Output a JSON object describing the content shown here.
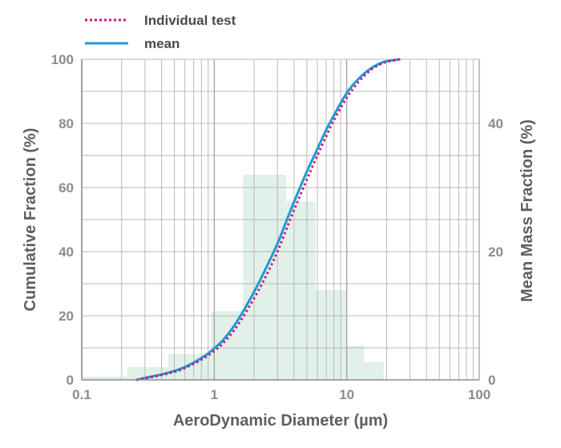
{
  "chart_data": {
    "type": "line",
    "xlabel": "AeroDynamic Diameter (µm)",
    "ylabel": "Cumulative Fraction (%)",
    "y2label": "Mean Mass Fraction (%)",
    "x_scale": "log",
    "xlim": [
      0.1,
      100
    ],
    "ylim": [
      0,
      100
    ],
    "y2lim": [
      0,
      50
    ],
    "x_ticks": [
      {
        "value": 0.1,
        "label": "0.1"
      },
      {
        "value": 1,
        "label": "1"
      },
      {
        "value": 10,
        "label": "10"
      },
      {
        "value": 100,
        "label": "100"
      }
    ],
    "y_ticks": [
      {
        "value": 0,
        "label": "0"
      },
      {
        "value": 20,
        "label": "20"
      },
      {
        "value": 40,
        "label": "40"
      },
      {
        "value": 60,
        "label": "60"
      },
      {
        "value": 80,
        "label": "80"
      },
      {
        "value": 100,
        "label": "100"
      }
    ],
    "y2_ticks": [
      {
        "value": 0,
        "label": "0"
      },
      {
        "value": 20,
        "label": "20"
      },
      {
        "value": 40,
        "label": "40"
      }
    ],
    "grid": true,
    "legend_position": "top-left",
    "series": [
      {
        "name": "Individual test",
        "style": "dotted",
        "color": "#d0107a",
        "x": [
          0.26,
          0.3,
          0.4,
          0.5,
          0.6,
          0.8,
          1.0,
          1.2,
          1.5,
          2.0,
          2.5,
          3.0,
          3.5,
          4.0,
          5.0,
          6.0,
          7.0,
          8.0,
          10.0,
          12.0,
          15.0,
          18.0,
          20.0,
          25.0
        ],
        "y": [
          0.0,
          0.5,
          1.5,
          2.5,
          3.7,
          6.3,
          9.0,
          12.0,
          17.0,
          25.5,
          33.0,
          40.0,
          47.0,
          53.0,
          62.5,
          70.0,
          76.0,
          81.0,
          88.0,
          92.5,
          96.5,
          98.5,
          99.2,
          100.0
        ]
      },
      {
        "name": "mean",
        "style": "solid",
        "color": "#1e9ad6",
        "x": [
          0.26,
          0.3,
          0.4,
          0.5,
          0.6,
          0.8,
          1.0,
          1.2,
          1.5,
          2.0,
          2.5,
          3.0,
          3.5,
          4.0,
          5.0,
          6.0,
          7.0,
          8.0,
          10.0,
          12.0,
          15.0,
          18.0,
          20.0,
          25.0
        ],
        "y": [
          0.0,
          0.6,
          1.7,
          2.8,
          4.0,
          6.8,
          9.8,
          13.0,
          18.5,
          27.5,
          35.5,
          42.5,
          49.5,
          55.5,
          65.0,
          72.0,
          78.0,
          82.5,
          89.5,
          93.5,
          97.0,
          98.8,
          99.4,
          100.0
        ]
      }
    ],
    "histogram": {
      "color": "#e1f0e9",
      "bins": [
        {
          "x0": 0.1,
          "x1": 0.22,
          "value": 0.5
        },
        {
          "x0": 0.22,
          "x1": 0.45,
          "value": 2.0
        },
        {
          "x0": 0.45,
          "x1": 0.95,
          "value": 4.0
        },
        {
          "x0": 0.95,
          "x1": 1.65,
          "value": 10.7
        },
        {
          "x0": 1.65,
          "x1": 3.5,
          "value": 32.0
        },
        {
          "x0": 3.5,
          "x1": 5.8,
          "value": 27.8
        },
        {
          "x0": 5.8,
          "x1": 10.0,
          "value": 14.0
        },
        {
          "x0": 10.0,
          "x1": 13.5,
          "value": 5.3
        },
        {
          "x0": 13.5,
          "x1": 19.0,
          "value": 2.8
        }
      ]
    }
  }
}
